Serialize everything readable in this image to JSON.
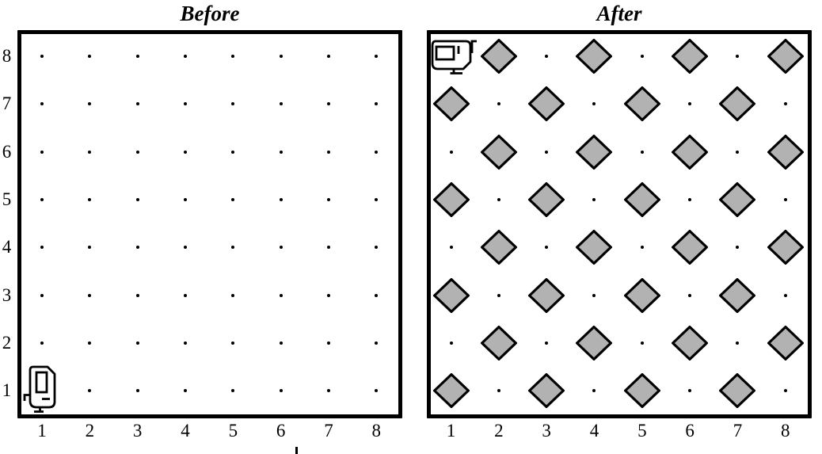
{
  "figure": {
    "kind": "karel-robot-world-before-after",
    "grid_columns": 8,
    "grid_rows": 8
  },
  "colors": {
    "background": "#ffffff",
    "line_color": "#000000",
    "beeper_fill": "#b2b2b2"
  },
  "icons": {
    "robot": "karel-robot-icon",
    "beeper": "beeper-diamond-icon",
    "empty_corner": "grid-dot"
  },
  "panels": [
    {
      "id": "before",
      "title": "Before",
      "x_axis_labels": [
        "1",
        "2",
        "3",
        "4",
        "5",
        "6",
        "7",
        "8"
      ],
      "y_axis_labels": [
        "8",
        "7",
        "6",
        "5",
        "4",
        "3",
        "2",
        "1"
      ],
      "robot": {
        "column": 1,
        "row": 1,
        "orientation": "vertical"
      },
      "beepers": []
    },
    {
      "id": "after",
      "title": "After",
      "x_axis_labels": [
        "1",
        "2",
        "3",
        "4",
        "5",
        "6",
        "7",
        "8"
      ],
      "y_axis_labels": [],
      "robot": {
        "column": 1,
        "row": 8,
        "orientation": "horizontal"
      },
      "beepers": [
        [
          2,
          8
        ],
        [
          4,
          8
        ],
        [
          6,
          8
        ],
        [
          8,
          8
        ],
        [
          1,
          7
        ],
        [
          3,
          7
        ],
        [
          5,
          7
        ],
        [
          7,
          7
        ],
        [
          2,
          6
        ],
        [
          4,
          6
        ],
        [
          6,
          6
        ],
        [
          8,
          6
        ],
        [
          1,
          5
        ],
        [
          3,
          5
        ],
        [
          5,
          5
        ],
        [
          7,
          5
        ],
        [
          2,
          4
        ],
        [
          4,
          4
        ],
        [
          6,
          4
        ],
        [
          8,
          4
        ],
        [
          1,
          3
        ],
        [
          3,
          3
        ],
        [
          5,
          3
        ],
        [
          7,
          3
        ],
        [
          2,
          2
        ],
        [
          4,
          2
        ],
        [
          6,
          2
        ],
        [
          8,
          2
        ],
        [
          1,
          1
        ],
        [
          3,
          1
        ],
        [
          5,
          1
        ],
        [
          7,
          1
        ]
      ]
    }
  ]
}
